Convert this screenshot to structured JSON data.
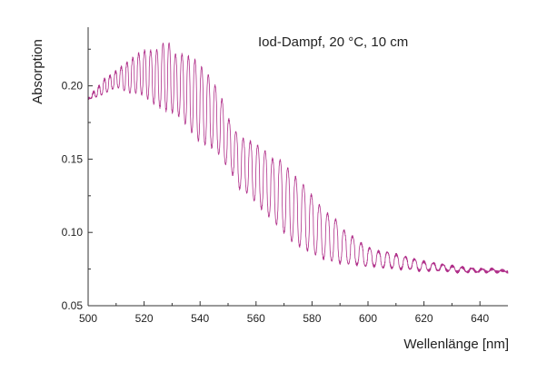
{
  "chart_data": {
    "type": "line",
    "title": "",
    "annotation": "Iod-Dampf, 20 °C, 10 cm",
    "xlabel": "Wellenlänge [nm]",
    "ylabel": "Absorption",
    "xlim": [
      500,
      650
    ],
    "ylim": [
      0.05,
      0.24
    ],
    "x_ticks": [
      500,
      520,
      540,
      560,
      580,
      600,
      620,
      640
    ],
    "y_ticks": [
      0.05,
      0.1,
      0.15,
      0.2
    ],
    "x_tick_labels": [
      "500",
      "520",
      "540",
      "560",
      "580",
      "600",
      "620",
      "640"
    ],
    "y_tick_labels": [
      "0.05",
      "0.10",
      "0.15",
      "0.20"
    ],
    "grid": false,
    "legend": "none",
    "series": [
      {
        "color": "#b0308a",
        "x": [
          500,
          502,
          504,
          506,
          508,
          510,
          512,
          514,
          516,
          518,
          520,
          522,
          524,
          526,
          528,
          530,
          532,
          534,
          536,
          538,
          540,
          542,
          544,
          546,
          548,
          550,
          552,
          554,
          556,
          558,
          560,
          562,
          564,
          566,
          568,
          570,
          572,
          574,
          576,
          578,
          580,
          582,
          584,
          586,
          588,
          590,
          592,
          594,
          596,
          598,
          600,
          602,
          604,
          606,
          608,
          610,
          612,
          614,
          616,
          618,
          620,
          622,
          624,
          626,
          628,
          630,
          632,
          634,
          636,
          638,
          640,
          642,
          644,
          646,
          648,
          650
        ],
        "upper": [
          0.191,
          0.196,
          0.2,
          0.205,
          0.207,
          0.21,
          0.213,
          0.216,
          0.219,
          0.222,
          0.224,
          0.224,
          0.224,
          0.226,
          0.234,
          0.224,
          0.22,
          0.222,
          0.22,
          0.218,
          0.214,
          0.21,
          0.205,
          0.198,
          0.19,
          0.178,
          0.172,
          0.164,
          0.164,
          0.162,
          0.16,
          0.158,
          0.154,
          0.15,
          0.15,
          0.148,
          0.142,
          0.138,
          0.135,
          0.13,
          0.125,
          0.12,
          0.116,
          0.112,
          0.11,
          0.105,
          0.1,
          0.098,
          0.095,
          0.092,
          0.09,
          0.088,
          0.087,
          0.087,
          0.086,
          0.085,
          0.084,
          0.083,
          0.082,
          0.081,
          0.08,
          0.079,
          0.079,
          0.078,
          0.078,
          0.077,
          0.077,
          0.076,
          0.076,
          0.075,
          0.075,
          0.075,
          0.075,
          0.075,
          0.074,
          0.074
        ],
        "lower": [
          0.191,
          0.192,
          0.193,
          0.195,
          0.197,
          0.199,
          0.198,
          0.195,
          0.195,
          0.195,
          0.193,
          0.19,
          0.187,
          0.185,
          0.183,
          0.182,
          0.18,
          0.176,
          0.17,
          0.166,
          0.161,
          0.16,
          0.158,
          0.156,
          0.148,
          0.145,
          0.138,
          0.13,
          0.128,
          0.125,
          0.12,
          0.116,
          0.112,
          0.108,
          0.104,
          0.1,
          0.095,
          0.092,
          0.09,
          0.088,
          0.086,
          0.084,
          0.082,
          0.081,
          0.08,
          0.079,
          0.079,
          0.078,
          0.078,
          0.077,
          0.077,
          0.077,
          0.076,
          0.076,
          0.076,
          0.075,
          0.075,
          0.075,
          0.075,
          0.074,
          0.074,
          0.074,
          0.074,
          0.074,
          0.074,
          0.073,
          0.073,
          0.073,
          0.073,
          0.073,
          0.073,
          0.073,
          0.073,
          0.073,
          0.073,
          0.073
        ]
      }
    ]
  }
}
